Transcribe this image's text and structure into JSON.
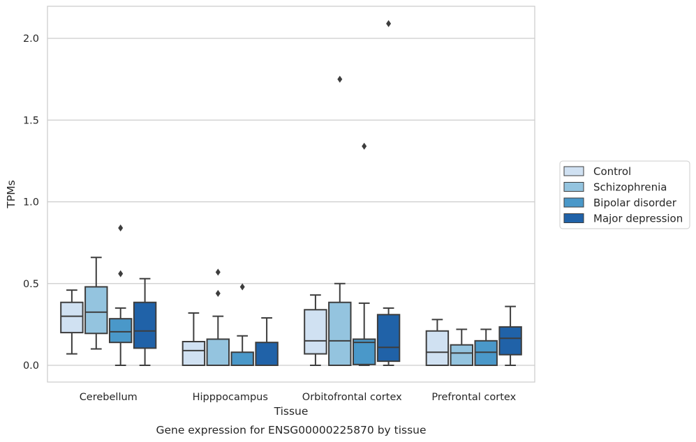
{
  "chart_data": {
    "type": "box",
    "xlabel": "Tissue",
    "ylabel": "TPMs",
    "caption": "Gene expression for ENSG00000225870 by tissue",
    "ylim": [
      -0.1,
      2.2
    ],
    "yticks": [
      0.0,
      0.5,
      1.0,
      1.5,
      2.0
    ],
    "ytick_labels": [
      "0.0",
      "0.5",
      "1.0",
      "1.5",
      "2.0"
    ],
    "grid": "horizontal",
    "legend_position": "right",
    "categories": [
      "Cerebellum",
      "Hipppocampus",
      "Orbitofrontal cortex",
      "Prefrontal cortex"
    ],
    "series": [
      {
        "name": "Control",
        "color": "#d0e1f2",
        "boxes": [
          {
            "whisker_low": 0.07,
            "q1": 0.2,
            "median": 0.3,
            "q3": 0.385,
            "whisker_high": 0.46,
            "outliers": []
          },
          {
            "whisker_low": 0.0,
            "q1": 0.0,
            "median": 0.09,
            "q3": 0.145,
            "whisker_high": 0.32,
            "outliers": []
          },
          {
            "whisker_low": 0.0,
            "q1": 0.07,
            "median": 0.15,
            "q3": 0.34,
            "whisker_high": 0.43,
            "outliers": []
          },
          {
            "whisker_low": 0.0,
            "q1": 0.0,
            "median": 0.08,
            "q3": 0.21,
            "whisker_high": 0.28,
            "outliers": []
          }
        ]
      },
      {
        "name": "Schizophrenia",
        "color": "#94c4df",
        "boxes": [
          {
            "whisker_low": 0.1,
            "q1": 0.195,
            "median": 0.325,
            "q3": 0.48,
            "whisker_high": 0.66,
            "outliers": []
          },
          {
            "whisker_low": 0.0,
            "q1": 0.0,
            "median": 0.0,
            "q3": 0.16,
            "whisker_high": 0.3,
            "outliers": [
              0.57,
              0.44
            ]
          },
          {
            "whisker_low": 0.0,
            "q1": 0.0,
            "median": 0.15,
            "q3": 0.385,
            "whisker_high": 0.5,
            "outliers": [
              1.75
            ]
          },
          {
            "whisker_low": 0.0,
            "q1": 0.0,
            "median": 0.075,
            "q3": 0.125,
            "whisker_high": 0.22,
            "outliers": []
          }
        ]
      },
      {
        "name": "Bipolar disorder",
        "color": "#4a98c9",
        "boxes": [
          {
            "whisker_low": 0.0,
            "q1": 0.14,
            "median": 0.205,
            "q3": 0.285,
            "whisker_high": 0.35,
            "outliers": [
              0.84,
              0.56
            ]
          },
          {
            "whisker_low": 0.0,
            "q1": 0.0,
            "median": 0.0,
            "q3": 0.08,
            "whisker_high": 0.18,
            "outliers": [
              0.48
            ]
          },
          {
            "whisker_low": 0.0,
            "q1": 0.005,
            "median": 0.14,
            "q3": 0.16,
            "whisker_high": 0.38,
            "outliers": [
              1.34
            ]
          },
          {
            "whisker_low": 0.0,
            "q1": 0.0,
            "median": 0.08,
            "q3": 0.15,
            "whisker_high": 0.22,
            "outliers": []
          }
        ]
      },
      {
        "name": "Major depression",
        "color": "#2062a8",
        "boxes": [
          {
            "whisker_low": 0.0,
            "q1": 0.105,
            "median": 0.21,
            "q3": 0.385,
            "whisker_high": 0.53,
            "outliers": []
          },
          {
            "whisker_low": 0.0,
            "q1": 0.0,
            "median": 0.0,
            "q3": 0.14,
            "whisker_high": 0.29,
            "outliers": []
          },
          {
            "whisker_low": 0.0,
            "q1": 0.025,
            "median": 0.11,
            "q3": 0.31,
            "whisker_high": 0.35,
            "outliers": [
              2.09
            ]
          },
          {
            "whisker_low": 0.0,
            "q1": 0.065,
            "median": 0.165,
            "q3": 0.235,
            "whisker_high": 0.36,
            "outliers": []
          }
        ]
      }
    ]
  }
}
